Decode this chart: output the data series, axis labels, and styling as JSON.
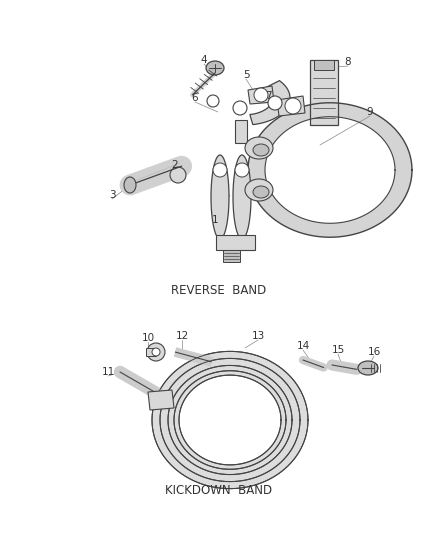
{
  "background_color": "#ffffff",
  "reverse_band_label": "REVERSE  BAND",
  "kickdown_band_label": "KICKDOWN  BAND",
  "text_color": "#333333",
  "label_fontsize": 8.5,
  "number_fontsize": 7.5,
  "line_color": "#444444",
  "fill_light": "#d8d8d8",
  "fill_mid": "#c0c0c0",
  "fill_dark": "#aaaaaa"
}
